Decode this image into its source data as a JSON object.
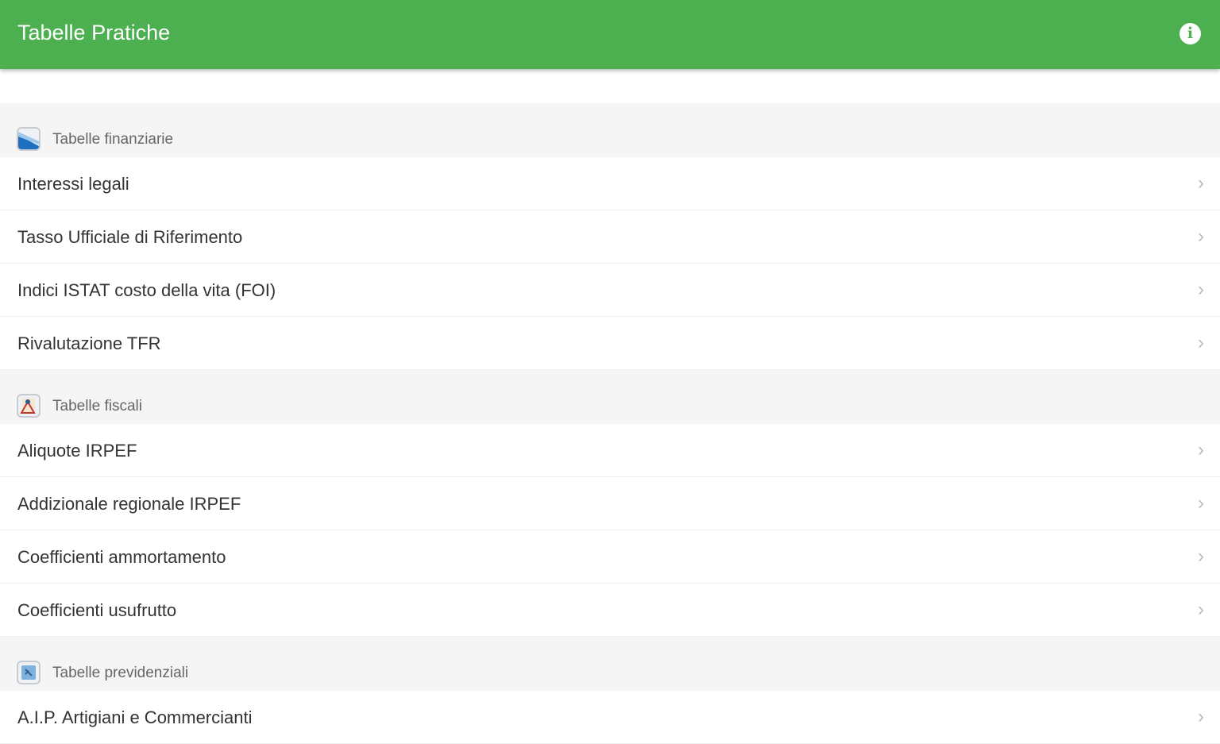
{
  "appbar": {
    "title": "Tabelle Pratiche",
    "info_icon": "info-icon"
  },
  "colors": {
    "primary": "#4caf50"
  },
  "sections": [
    {
      "label": "Tabelle finanziarie",
      "icon": "finance-chart-icon",
      "items": [
        {
          "label": "Interessi legali"
        },
        {
          "label": "Tasso Ufficiale di Riferimento"
        },
        {
          "label": "Indici ISTAT costo della vita (FOI)"
        },
        {
          "label": "Rivalutazione TFR"
        }
      ]
    },
    {
      "label": "Tabelle fiscali",
      "icon": "tax-icon",
      "items": [
        {
          "label": "Aliquote IRPEF"
        },
        {
          "label": "Addizionale regionale IRPEF"
        },
        {
          "label": "Coefficienti ammortamento"
        },
        {
          "label": "Coefficienti usufrutto"
        }
      ]
    },
    {
      "label": "Tabelle previdenziali",
      "icon": "pension-icon",
      "items": [
        {
          "label": "A.I.P. Artigiani e Commercianti"
        }
      ]
    }
  ]
}
